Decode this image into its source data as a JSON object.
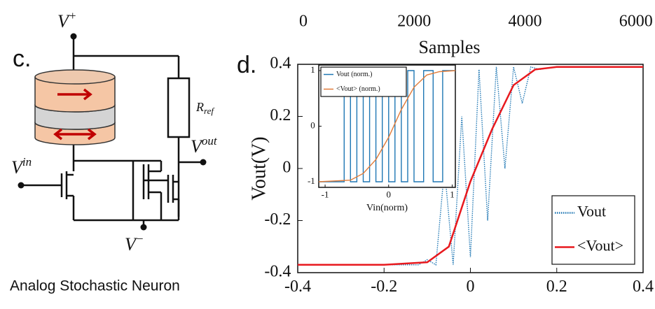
{
  "diagram": {
    "panel_label": "c.",
    "vplus": {
      "base": "V",
      "sup": "+"
    },
    "vminus": {
      "base": "V",
      "sup": "−"
    },
    "vin": {
      "base": "V",
      "sup": "in"
    },
    "vout": {
      "base": "V",
      "sup": "out"
    },
    "rref": {
      "base": "R",
      "sub": "ref"
    },
    "caption": "Analog Stochastic Neuron"
  },
  "chart_data": [
    {
      "type": "line",
      "panel_label": "d.",
      "ylabel": "Vout(V)",
      "x2label": "Samples",
      "xlim": [
        -0.4,
        0.4
      ],
      "xticks": [
        -0.4,
        -0.2,
        0,
        0.2,
        0.4
      ],
      "ylim": [
        -0.4,
        0.4
      ],
      "yticks": [
        -0.4,
        -0.2,
        0,
        0.2,
        0.4
      ],
      "x2lim": [
        0,
        6230
      ],
      "x2ticks": [
        0,
        2000,
        4000,
        6000
      ],
      "legend": "lower right",
      "series": [
        {
          "name": "Vout",
          "color": "#1f77b4",
          "style": "dotted",
          "x": [
            -0.4,
            -0.12,
            -0.1,
            -0.08,
            -0.06,
            -0.04,
            -0.02,
            0,
            0.02,
            0.04,
            0.06,
            0.08,
            0.1,
            0.12,
            0.14,
            0.16,
            0.2,
            0.4
          ],
          "values": [
            -0.37,
            -0.37,
            -0.35,
            -0.37,
            0.0,
            -0.37,
            0.2,
            -0.34,
            0.38,
            -0.2,
            0.39,
            0.0,
            0.39,
            0.25,
            0.39,
            0.38,
            0.39,
            0.39
          ]
        },
        {
          "name": "<Vout>",
          "color": "#e8191e",
          "style": "solid",
          "x": [
            -0.4,
            -0.2,
            -0.1,
            -0.05,
            0,
            0.05,
            0.1,
            0.15,
            0.2,
            0.4
          ],
          "values": [
            -0.37,
            -0.37,
            -0.36,
            -0.3,
            -0.05,
            0.15,
            0.32,
            0.38,
            0.39,
            0.39
          ]
        }
      ]
    },
    {
      "type": "line",
      "xlabel": "Vin(norm)",
      "xlim": [
        -1.1,
        1.05
      ],
      "xticks": [
        -1,
        0,
        1
      ],
      "ylim": [
        -1.1,
        1.1
      ],
      "yticks": [
        -1,
        0,
        1
      ],
      "legend": "upper left",
      "series": [
        {
          "name": "Vout (norm.)",
          "color": "#1f77b4",
          "style": "solid",
          "x": [
            -1.1,
            -0.7,
            -0.7,
            -0.6,
            -0.6,
            -0.5,
            -0.5,
            -0.4,
            -0.4,
            -0.3,
            -0.3,
            -0.2,
            -0.2,
            -0.1,
            -0.1,
            0,
            0,
            0.1,
            0.1,
            0.2,
            0.2,
            0.3,
            0.3,
            0.4,
            0.4,
            0.55,
            0.55,
            0.7,
            0.7,
            0.85,
            0.85,
            1.05
          ],
          "values": [
            -1,
            -1,
            1,
            1,
            -1,
            -1,
            1,
            1,
            -1,
            -1,
            1,
            1,
            -1,
            -1,
            1,
            1,
            -1,
            -1,
            1,
            1,
            -1,
            -1,
            1,
            1,
            -1,
            -1,
            1,
            1,
            -1,
            -1,
            1,
            1
          ]
        },
        {
          "name": "<Vout> (norm.)",
          "color": "#e07b39",
          "style": "solid",
          "x": [
            -1.1,
            -0.6,
            -0.4,
            -0.2,
            0,
            0.2,
            0.4,
            0.6,
            0.8,
            1.05
          ],
          "values": [
            -1,
            -0.97,
            -0.85,
            -0.6,
            -0.2,
            0.3,
            0.7,
            0.92,
            0.98,
            1
          ]
        }
      ]
    }
  ]
}
